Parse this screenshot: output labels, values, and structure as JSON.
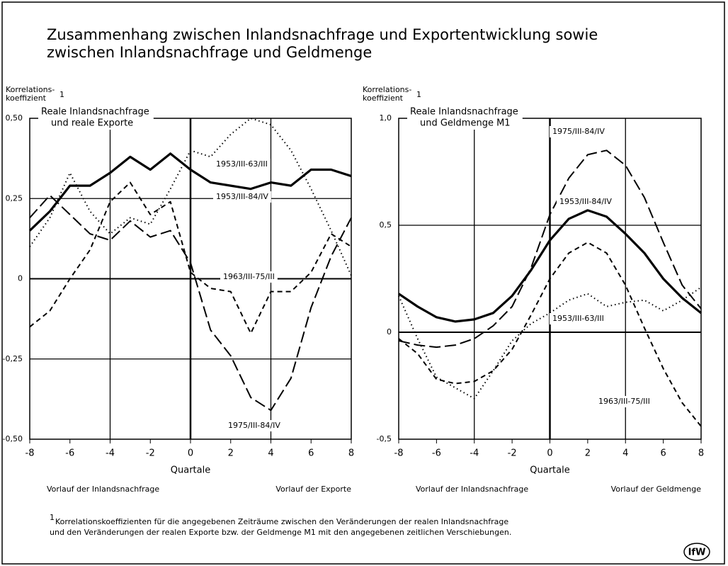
{
  "title": [
    "Zusammenhang zwischen Inlandsnachfrage und Exportentwicklung sowie",
    "zwischen Inlandsnachfrage und Geldmenge"
  ],
  "footnote": {
    "mark": "1",
    "lines": [
      "Korrelationskoeffizienten für die angegebenen Zeiträume zwischen den Veränderungen der realen Inlandsnachfrage",
      "und den Veränderungen der realen Exporte bzw. der Geldmenge M1 mit den angegebenen zeitlichen Verschiebungen."
    ]
  },
  "logo": "IfW",
  "chart_data": [
    {
      "type": "line",
      "title": [
        "Reale Inlandsnachfrage",
        "und reale Exporte"
      ],
      "ylabel": [
        "Korrelations-",
        "koeffizient"
      ],
      "ylabel_mark": "1",
      "xlabel": "Quartale",
      "xnotes": [
        "Vorlauf der Inlandsnachfrage",
        "Vorlauf der Exporte"
      ],
      "x": [
        -8,
        -7,
        -6,
        -5,
        -4,
        -3,
        -2,
        -1,
        0,
        1,
        2,
        3,
        4,
        5,
        6,
        7,
        8
      ],
      "xlim": [
        -8,
        8
      ],
      "xticks": [
        -8,
        -6,
        -4,
        -2,
        0,
        2,
        4,
        6,
        8
      ],
      "ylim": [
        -0.5,
        0.5
      ],
      "yticks": [
        {
          "value": -0.5,
          "label": "-0,50"
        },
        {
          "value": -0.25,
          "label": "-0,25"
        },
        0,
        {
          "value": 0.25,
          "label": "0,25"
        },
        {
          "value": 0.5,
          "label": "0,50"
        }
      ],
      "grid": true,
      "series": [
        {
          "name": "1953/III-63/III",
          "color": "#000",
          "style": "dotted",
          "values": [
            0.1,
            0.19,
            0.33,
            0.21,
            0.14,
            0.19,
            0.17,
            0.28,
            0.4,
            0.38,
            0.45,
            0.5,
            0.48,
            0.4,
            0.28,
            0.15,
            0.01
          ]
        },
        {
          "name": "1953/III-84/IV",
          "color": "#000",
          "style": "solid",
          "values": [
            0.15,
            0.21,
            0.29,
            0.29,
            0.33,
            0.38,
            0.34,
            0.39,
            0.34,
            0.3,
            0.29,
            0.28,
            0.3,
            0.29,
            0.34,
            0.34,
            0.32
          ]
        },
        {
          "name": "1963/III-75/III",
          "color": "#000",
          "style": "dashed",
          "values": [
            -0.15,
            -0.1,
            0.0,
            0.09,
            0.24,
            0.3,
            0.2,
            0.24,
            0.02,
            -0.03,
            -0.04,
            -0.17,
            -0.04,
            -0.04,
            0.02,
            0.14,
            0.1
          ]
        },
        {
          "name": "1975/III-84/IV",
          "color": "#000",
          "style": "longdash",
          "values": [
            0.19,
            0.26,
            0.2,
            0.14,
            0.12,
            0.18,
            0.13,
            0.15,
            0.05,
            -0.16,
            -0.24,
            -0.37,
            -0.41,
            -0.31,
            -0.09,
            0.07,
            0.19
          ]
        }
      ]
    },
    {
      "type": "line",
      "title": [
        "Reale Inlandsnachfrage",
        "und Geldmenge M1"
      ],
      "ylabel": [
        "Korrelations-",
        "koeffizient"
      ],
      "ylabel_mark": "1",
      "xlabel": "Quartale",
      "xnotes": [
        "Vorlauf der Inlandsnachfrage",
        "Vorlauf der Geldmenge"
      ],
      "x": [
        -8,
        -7,
        -6,
        -5,
        -4,
        -3,
        -2,
        -1,
        0,
        1,
        2,
        3,
        4,
        5,
        6,
        7,
        8
      ],
      "xlim": [
        -8,
        8
      ],
      "xticks": [
        -8,
        -6,
        -4,
        -2,
        0,
        2,
        4,
        6,
        8
      ],
      "ylim": [
        -0.5,
        1.0
      ],
      "yticks": [
        {
          "value": -0.5,
          "label": "-0,5"
        },
        0,
        {
          "value": 0.5,
          "label": "0,5"
        },
        {
          "value": 1.0,
          "label": "1,0"
        }
      ],
      "grid": true,
      "series": [
        {
          "name": "1975/III-84/IV",
          "color": "#000",
          "style": "longdash",
          "values": [
            -0.04,
            -0.06,
            -0.07,
            -0.06,
            -0.03,
            0.03,
            0.12,
            0.3,
            0.55,
            0.72,
            0.83,
            0.85,
            0.78,
            0.63,
            0.42,
            0.22,
            0.11
          ]
        },
        {
          "name": "1953/III-84/IV",
          "color": "#000",
          "style": "solid",
          "values": [
            0.18,
            0.12,
            0.07,
            0.05,
            0.06,
            0.09,
            0.17,
            0.29,
            0.43,
            0.53,
            0.57,
            0.54,
            0.46,
            0.37,
            0.25,
            0.16,
            0.09
          ]
        },
        {
          "name": "1953/III-63/III",
          "color": "#000",
          "style": "dotted",
          "values": [
            0.17,
            -0.03,
            -0.21,
            -0.26,
            -0.31,
            -0.18,
            -0.04,
            0.04,
            0.09,
            0.15,
            0.18,
            0.12,
            0.14,
            0.15,
            0.1,
            0.15,
            0.21
          ]
        },
        {
          "name": "1963/III-75/III",
          "color": "#000",
          "style": "dashed",
          "values": [
            -0.03,
            -0.1,
            -0.22,
            -0.24,
            -0.23,
            -0.18,
            -0.08,
            0.08,
            0.25,
            0.37,
            0.42,
            0.37,
            0.22,
            0.02,
            -0.17,
            -0.33,
            -0.44
          ]
        }
      ]
    }
  ]
}
